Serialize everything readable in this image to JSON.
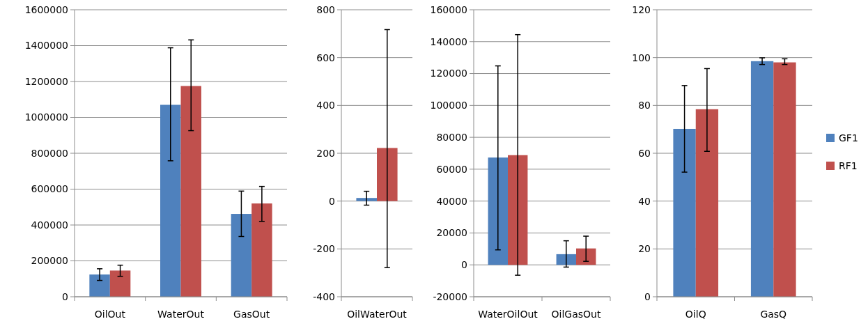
{
  "chart_data": [
    {
      "type": "bar",
      "categories": [
        "OilOut",
        "WaterOut",
        "GasOut"
      ],
      "ylim": [
        0,
        1600000
      ],
      "yticks": [
        0,
        200000,
        400000,
        600000,
        800000,
        1000000,
        1200000,
        1400000,
        1600000
      ],
      "grid": "y",
      "legend": false,
      "series": [
        {
          "color": "#4f81bd",
          "values": [
            124000,
            1070000,
            462000
          ],
          "errors": [
            [
              91000,
              156000
            ],
            [
              758000,
              1388000
            ],
            [
              336000,
              589000
            ]
          ]
        },
        {
          "color": "#c0504d",
          "values": [
            146000,
            1175000,
            520000
          ],
          "errors": [
            [
              114000,
              176000
            ],
            [
              926000,
              1432000
            ],
            [
              420000,
              615000
            ]
          ]
        }
      ]
    },
    {
      "type": "bar",
      "categories": [
        "OilWaterOut"
      ],
      "ylim": [
        -400,
        800
      ],
      "yticks": [
        -400,
        -200,
        0,
        200,
        400,
        600,
        800
      ],
      "grid": "y",
      "legend": false,
      "series": [
        {
          "color": "#4f81bd",
          "values": [
            13
          ],
          "errors": [
            [
              -17,
              41
            ]
          ]
        },
        {
          "color": "#c0504d",
          "values": [
            222
          ],
          "errors": [
            [
              -278,
              717
            ]
          ]
        }
      ]
    },
    {
      "type": "bar",
      "categories": [
        "WaterOilOut",
        "OilGasOut"
      ],
      "ylim": [
        -20000,
        160000
      ],
      "yticks": [
        -20000,
        0,
        20000,
        40000,
        60000,
        80000,
        100000,
        120000,
        140000,
        160000
      ],
      "grid": "y",
      "legend": false,
      "series": [
        {
          "color": "#4f81bd",
          "values": [
            67300,
            6700
          ],
          "errors": [
            [
              9400,
              124800
            ],
            [
              -1400,
              15100
            ]
          ]
        },
        {
          "color": "#c0504d",
          "values": [
            68800,
            10300
          ],
          "errors": [
            [
              -6500,
              144400
            ],
            [
              2200,
              18000
            ]
          ]
        }
      ]
    },
    {
      "type": "bar",
      "categories": [
        "OilQ",
        "GasQ"
      ],
      "ylim": [
        0,
        120
      ],
      "yticks": [
        0,
        20,
        40,
        60,
        80,
        100,
        120
      ],
      "grid": "y",
      "legend": "right",
      "series": [
        {
          "name": "GF1",
          "color": "#4f81bd",
          "values": [
            70.2,
            98.5
          ],
          "errors": [
            [
              52.1,
              88.3
            ],
            [
              97.1,
              99.9
            ]
          ]
        },
        {
          "name": "RF1",
          "color": "#c0504d",
          "values": [
            78.4,
            98.0
          ],
          "errors": [
            [
              60.8,
              95.4
            ],
            [
              97.1,
              99.5
            ]
          ]
        }
      ]
    }
  ]
}
